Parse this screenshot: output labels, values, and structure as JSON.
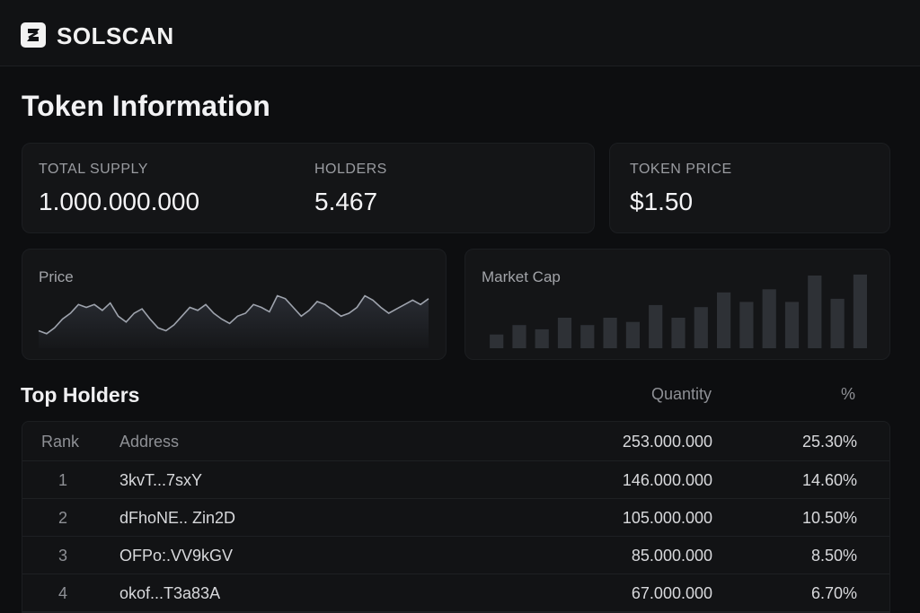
{
  "header": {
    "brand": "SOLSCAN",
    "logo_icon": "solscan-logo-icon"
  },
  "page": {
    "title": "Token Information"
  },
  "stats": {
    "total_supply_label": "TOTAL SUPPLY",
    "total_supply_value": "1.000.000.000",
    "holders_label": "HOLDERS",
    "holders_value": "5.467",
    "price_label": "TOKEN PRICE",
    "price_value": "$1.50"
  },
  "charts": {
    "price_title": "Price",
    "market_cap_title": "Market Cap"
  },
  "chart_data": [
    {
      "type": "area",
      "title": "Price",
      "x": [
        0,
        1,
        2,
        3,
        4,
        5,
        6,
        7,
        8,
        9,
        10,
        11,
        12,
        13,
        14,
        15,
        16,
        17,
        18,
        19,
        20,
        21,
        22,
        23,
        24,
        25,
        26,
        27,
        28,
        29,
        30,
        31,
        32,
        33,
        34,
        35,
        36,
        37,
        38,
        39,
        40,
        41,
        42,
        43,
        44,
        45,
        46,
        47,
        48,
        49
      ],
      "values": [
        12,
        10,
        14,
        20,
        24,
        30,
        28,
        30,
        26,
        31,
        22,
        18,
        24,
        27,
        20,
        14,
        12,
        16,
        22,
        28,
        26,
        30,
        24,
        20,
        17,
        22,
        24,
        30,
        28,
        25,
        36,
        34,
        28,
        22,
        26,
        32,
        30,
        26,
        22,
        24,
        28,
        36,
        33,
        28,
        24,
        27,
        30,
        33,
        30,
        34
      ],
      "xlabel": "",
      "ylabel": ""
    },
    {
      "type": "bar",
      "title": "Market Cap",
      "categories": [
        "1",
        "2",
        "3",
        "4",
        "5",
        "6",
        "7",
        "8",
        "9",
        "10",
        "11",
        "12",
        "13",
        "14",
        "15",
        "16",
        "17"
      ],
      "values": [
        13,
        22,
        18,
        29,
        22,
        29,
        25,
        41,
        29,
        39,
        53,
        44,
        56,
        44,
        69,
        47,
        70
      ],
      "ylim": [
        0,
        75
      ]
    }
  ],
  "holders": {
    "title": "Top Holders",
    "columns": {
      "rank": "Rank",
      "address": "Address",
      "quantity": "Quantity",
      "percent": "%"
    },
    "header_row": {
      "quantity": "253.000.000",
      "percent": "25.30%"
    },
    "rows": [
      {
        "rank": "1",
        "address": "3kvT...7sxY",
        "quantity": "146.000.000",
        "percent": "14.60%"
      },
      {
        "rank": "2",
        "address": "dFhoNE.. Zin2D",
        "quantity": "105.000.000",
        "percent": "10.50%"
      },
      {
        "rank": "3",
        "address": "OFPo:.VV9kGV",
        "quantity": "85.000.000",
        "percent": "8.50%"
      },
      {
        "rank": "4",
        "address": "okof...T3a83A",
        "quantity": "67.000.000",
        "percent": "6.70%"
      }
    ]
  },
  "colors": {
    "bg": "#0d0e10",
    "card": "#141517",
    "bar": "#2e3136",
    "line": "#9ea3ad"
  }
}
